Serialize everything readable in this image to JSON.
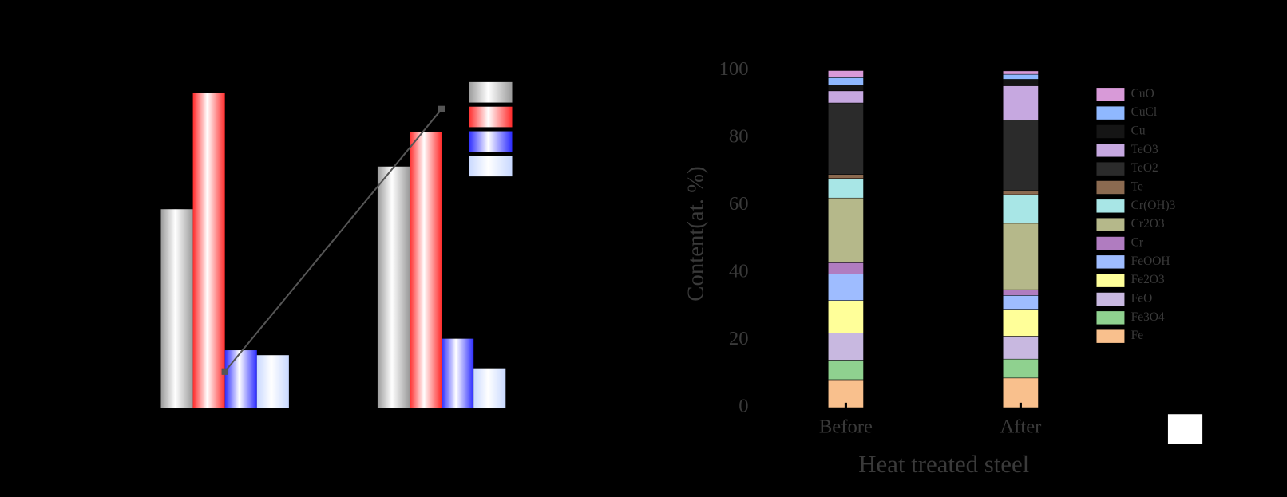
{
  "chart_data": [
    {
      "type": "bar",
      "categories": [
        null,
        null
      ],
      "ylim": [
        0,
        100
      ],
      "series": [
        {
          "color": "#9a9a9a",
          "values": [
            60.5,
            73.5
          ]
        },
        {
          "color": "#ff2a2a",
          "values": [
            96,
            84
          ]
        },
        {
          "color": "#2a2aff",
          "values": [
            17.5,
            21
          ]
        },
        {
          "color": "#c8d8ff",
          "values": [
            16,
            12
          ]
        },
        {
          "type": "line",
          "color": "#555555",
          "values": [
            11,
            91
          ]
        }
      ]
    },
    {
      "type": "stacked_bar",
      "ylabel": "Content(at. %)",
      "xlabel": "Heat treated steel",
      "categories": [
        "Before",
        "After"
      ],
      "ylim": [
        0,
        100
      ],
      "yticks": [
        0,
        20,
        40,
        60,
        80,
        100
      ],
      "series": [
        {
          "name": "Fe",
          "color": "#f9c08d",
          "values": [
            8.3,
            8.8
          ]
        },
        {
          "name": "Fe3O4",
          "color": "#8fd18f",
          "values": [
            5.8,
            5.6
          ]
        },
        {
          "name": "FeO",
          "color": "#c8b8e0",
          "values": [
            8,
            6.8
          ]
        },
        {
          "name": "Fe2O3",
          "color": "#ffff99",
          "values": [
            9.7,
            8
          ]
        },
        {
          "name": "FeOOH",
          "color": "#9ebcff",
          "values": [
            7.8,
            4.1
          ]
        },
        {
          "name": "Cr",
          "color": "#b07cc0",
          "values": [
            3.4,
            1.7
          ]
        },
        {
          "name": "Cr2O3",
          "color": "#b5b88a",
          "values": [
            19.2,
            19.7
          ]
        },
        {
          "name": "Cr(OH)3",
          "color": "#a8e6e6",
          "values": [
            5.8,
            8.5
          ]
        },
        {
          "name": "Te",
          "color": "#8b6a50",
          "values": [
            1.2,
            1.2
          ]
        },
        {
          "name": "TeO2",
          "color": "#2b2b2b",
          "values": [
            21.2,
            20.9
          ]
        },
        {
          "name": "TeO3",
          "color": "#c6a8e0",
          "values": [
            3.6,
            10.2
          ]
        },
        {
          "name": "Cu",
          "color": "#151515",
          "values": [
            1.7,
            1.9
          ]
        },
        {
          "name": "CuCl",
          "color": "#8fb8ff",
          "values": [
            2.2,
            1.5
          ]
        },
        {
          "name": "CuO",
          "color": "#d89ad8",
          "values": [
            2.1,
            1
          ]
        }
      ]
    }
  ]
}
